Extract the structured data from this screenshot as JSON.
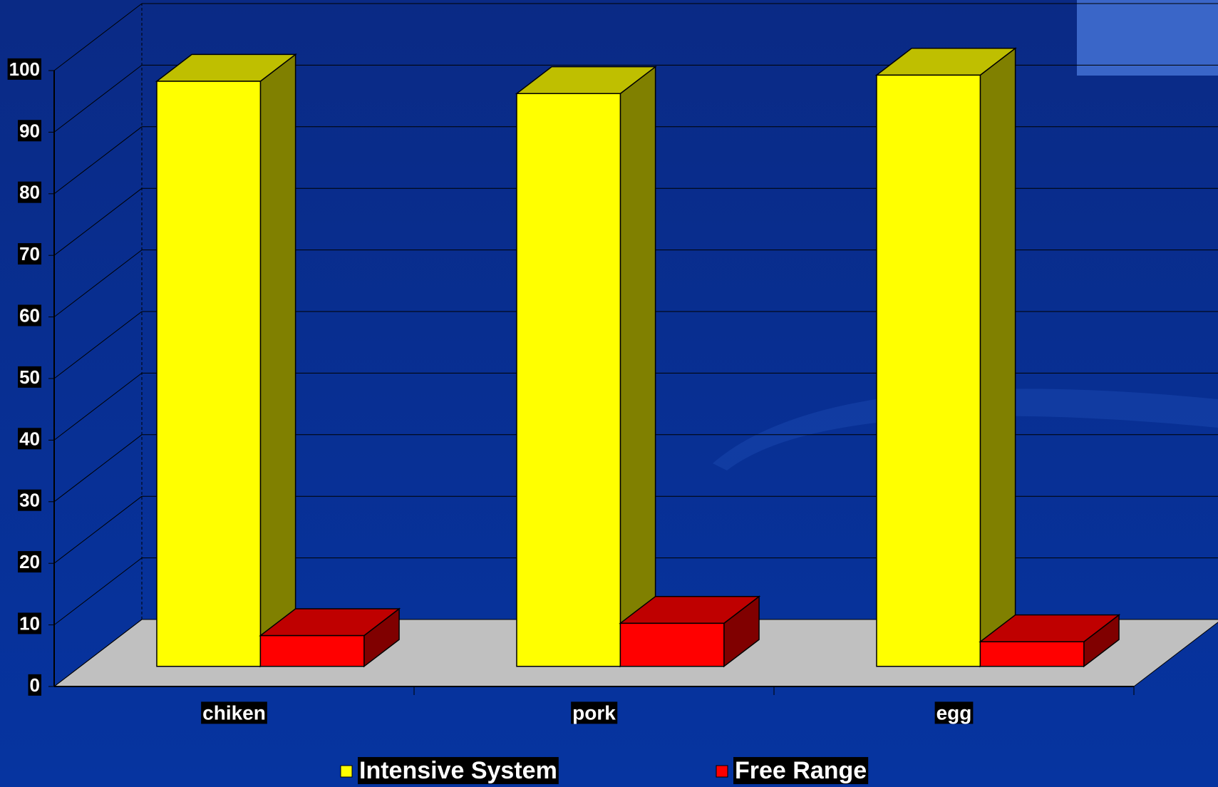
{
  "chart_data": {
    "type": "bar3d",
    "categories": [
      "chiken",
      "pork",
      "egg"
    ],
    "series": [
      {
        "name": "Intensive System",
        "color": "#ffff00",
        "values": [
          95,
          93,
          96
        ]
      },
      {
        "name": "Free Range",
        "color": "#ff0000",
        "values": [
          5,
          7,
          4
        ]
      }
    ],
    "ylim": [
      0,
      100
    ],
    "yticks": [
      0,
      10,
      20,
      30,
      40,
      50,
      60,
      70,
      80,
      90,
      100
    ],
    "grid": true,
    "legend": "bottom"
  }
}
